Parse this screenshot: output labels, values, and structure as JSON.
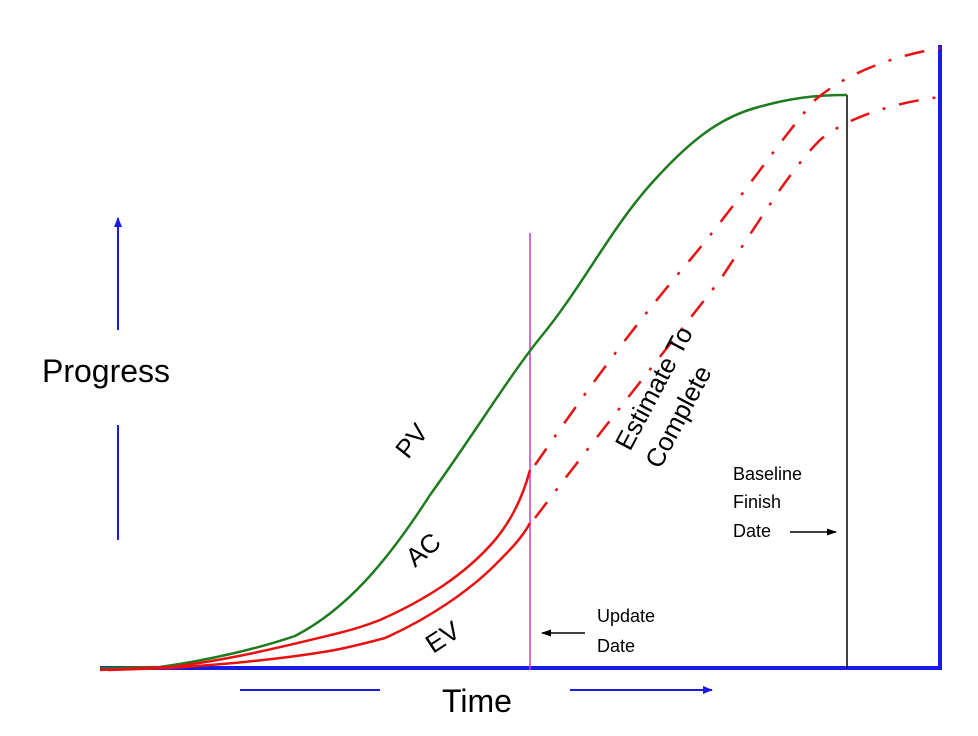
{
  "labels": {
    "y_axis": "Progress",
    "x_axis": "Time",
    "pv": "PV",
    "ac": "AC",
    "ev": "EV",
    "estimate_line1": "Estimate To",
    "estimate_line2": "Complete",
    "baseline_line1": "Baseline",
    "baseline_line2": "Finish",
    "baseline_line3": "Date",
    "update_line1": "Update",
    "update_line2": "Date"
  },
  "colors": {
    "pv": "#1e7b1e",
    "ac": "#e81010",
    "ev": "#e81010",
    "forecast": "#e81010",
    "axis": "#1a1ae6",
    "update_line": "#d633d6",
    "baseline_line": "#000000"
  }
}
